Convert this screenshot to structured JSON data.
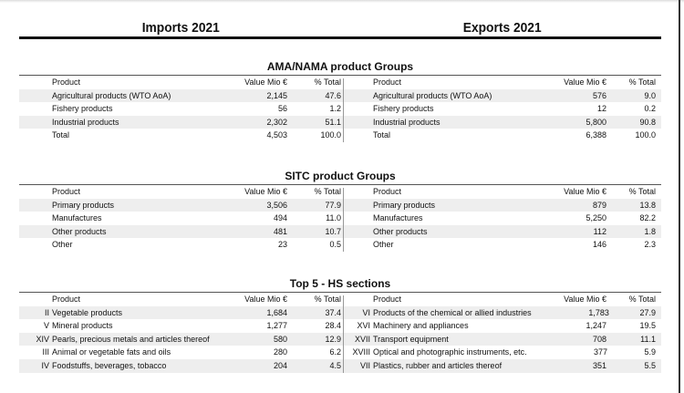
{
  "headers": {
    "imports": "Imports 2021",
    "exports": "Exports 2021"
  },
  "columns": {
    "product": "Product",
    "value": "Value Mio €",
    "pct": "% Total"
  },
  "sections": [
    {
      "title": "AMA/NAMA product Groups",
      "imports": [
        {
          "product": "Agricultural products (WTO AoA)",
          "value": "2,145",
          "pct": "47.6"
        },
        {
          "product": "Fishery products",
          "value": "56",
          "pct": "1.2"
        },
        {
          "product": "Industrial products",
          "value": "2,302",
          "pct": "51.1"
        },
        {
          "product": "Total",
          "value": "4,503",
          "pct": "100.0"
        }
      ],
      "exports": [
        {
          "product": "Agricultural products (WTO AoA)",
          "value": "576",
          "pct": "9.0"
        },
        {
          "product": "Fishery products",
          "value": "12",
          "pct": "0.2"
        },
        {
          "product": "Industrial products",
          "value": "5,800",
          "pct": "90.8"
        },
        {
          "product": "Total",
          "value": "6,388",
          "pct": "100.0"
        }
      ]
    },
    {
      "title": "SITC product Groups",
      "imports": [
        {
          "product": "Primary products",
          "value": "3,506",
          "pct": "77.9"
        },
        {
          "product": "Manufactures",
          "value": "494",
          "pct": "11.0"
        },
        {
          "product": "Other products",
          "value": "481",
          "pct": "10.7"
        },
        {
          "product": "Other",
          "value": "23",
          "pct": "0.5"
        }
      ],
      "exports": [
        {
          "product": "Primary products",
          "value": "879",
          "pct": "13.8"
        },
        {
          "product": "Manufactures",
          "value": "5,250",
          "pct": "82.2"
        },
        {
          "product": "Other products",
          "value": "112",
          "pct": "1.8"
        },
        {
          "product": "Other",
          "value": "146",
          "pct": "2.3"
        }
      ]
    },
    {
      "title": "Top 5  - HS sections",
      "imports": [
        {
          "roman": "II",
          "product": "Vegetable products",
          "value": "1,684",
          "pct": "37.4"
        },
        {
          "roman": "V",
          "product": "Mineral products",
          "value": "1,277",
          "pct": "28.4"
        },
        {
          "roman": "XIV",
          "product": "Pearls, precious metals and articles thereof",
          "value": "580",
          "pct": "12.9"
        },
        {
          "roman": "III",
          "product": "Animal or vegetable fats and oils",
          "value": "280",
          "pct": "6.2"
        },
        {
          "roman": "IV",
          "product": "Foodstuffs, beverages, tobacco",
          "value": "204",
          "pct": "4.5"
        }
      ],
      "exports": [
        {
          "roman": "VI",
          "product": "Products of the chemical or allied industries",
          "value": "1,783",
          "pct": "27.9"
        },
        {
          "roman": "XVI",
          "product": "Machinery and appliances",
          "value": "1,247",
          "pct": "19.5"
        },
        {
          "roman": "XVII",
          "product": "Transport equipment",
          "value": "708",
          "pct": "11.1"
        },
        {
          "roman": "XVIII",
          "product": "Optical and photographic instruments, etc.",
          "value": "377",
          "pct": "5.9"
        },
        {
          "roman": "VII",
          "product": "Plastics, rubber and articles thereof",
          "value": "351",
          "pct": "5.5"
        }
      ]
    }
  ]
}
